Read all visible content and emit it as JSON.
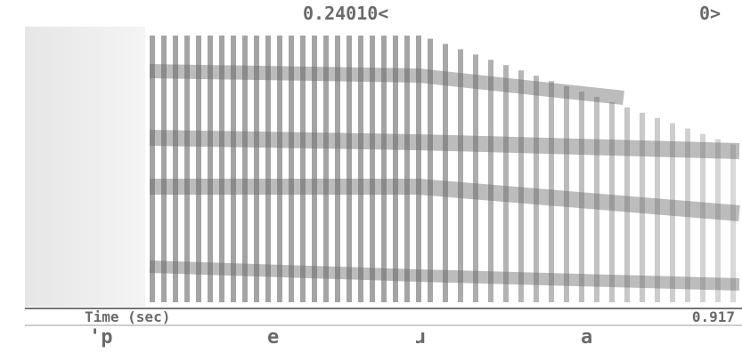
{
  "header": {
    "cursor_readout": "0.24010<",
    "cursor_index": "0>"
  },
  "axis": {
    "label": "Time (sec)",
    "end_value": "0.917"
  },
  "segments": [
    "'p",
    "e",
    "ɹ",
    "a"
  ]
}
